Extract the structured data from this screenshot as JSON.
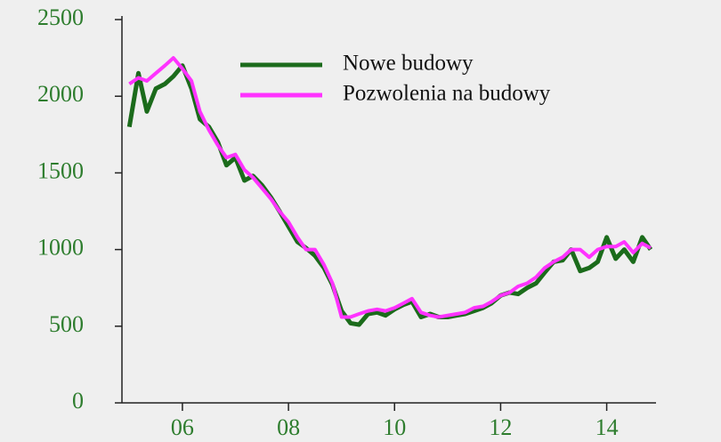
{
  "chart_data": {
    "type": "line",
    "x": [
      2005.0,
      2005.17,
      2005.33,
      2005.5,
      2005.67,
      2005.83,
      2006.0,
      2006.17,
      2006.33,
      2006.5,
      2006.67,
      2006.83,
      2007.0,
      2007.17,
      2007.33,
      2007.5,
      2007.67,
      2007.83,
      2008.0,
      2008.17,
      2008.33,
      2008.5,
      2008.67,
      2008.83,
      2009.0,
      2009.17,
      2009.33,
      2009.5,
      2009.67,
      2009.83,
      2010.0,
      2010.17,
      2010.33,
      2010.5,
      2010.67,
      2010.83,
      2011.0,
      2011.17,
      2011.33,
      2011.5,
      2011.67,
      2011.83,
      2012.0,
      2012.17,
      2012.33,
      2012.5,
      2012.67,
      2012.83,
      2013.0,
      2013.17,
      2013.33,
      2013.5,
      2013.67,
      2013.83,
      2014.0,
      2014.17,
      2014.33,
      2014.5,
      2014.67,
      2014.83
    ],
    "series": [
      {
        "name": "Nowe budowy",
        "color": "#1b6b1b",
        "values": [
          1800,
          2150,
          1900,
          2050,
          2080,
          2130,
          2200,
          2050,
          1850,
          1800,
          1700,
          1550,
          1600,
          1450,
          1480,
          1420,
          1340,
          1250,
          1150,
          1050,
          1010,
          960,
          880,
          770,
          600,
          520,
          510,
          580,
          590,
          570,
          610,
          640,
          660,
          560,
          580,
          560,
          560,
          570,
          580,
          600,
          620,
          650,
          700,
          720,
          710,
          750,
          780,
          850,
          920,
          930,
          1000,
          860,
          880,
          920,
          1080,
          940,
          1000,
          920,
          1080,
          1000
        ]
      },
      {
        "name": "Pozwolenia na budowy",
        "color": "#ff33ff",
        "values": [
          2080,
          2120,
          2100,
          2150,
          2200,
          2250,
          2180,
          2100,
          1900,
          1780,
          1680,
          1600,
          1620,
          1520,
          1470,
          1400,
          1330,
          1250,
          1180,
          1080,
          1000,
          1000,
          900,
          780,
          560,
          560,
          580,
          600,
          610,
          600,
          620,
          650,
          680,
          590,
          570,
          560,
          570,
          580,
          590,
          620,
          630,
          660,
          700,
          720,
          760,
          780,
          820,
          880,
          920,
          950,
          1000,
          1000,
          950,
          1000,
          1020,
          1020,
          1050,
          980,
          1040,
          1010
        ]
      }
    ],
    "xlim": [
      2004.86,
      2014.93
    ],
    "xticks": [
      {
        "value": 2006,
        "label": "06"
      },
      {
        "value": 2008,
        "label": "08"
      },
      {
        "value": 2010,
        "label": "10"
      },
      {
        "value": 2012,
        "label": "12"
      },
      {
        "value": 2014,
        "label": "14"
      }
    ],
    "ylim": [
      0,
      2500
    ],
    "yticks": [
      0,
      500,
      1000,
      1500,
      2000,
      2500
    ],
    "legend": "upper right"
  }
}
